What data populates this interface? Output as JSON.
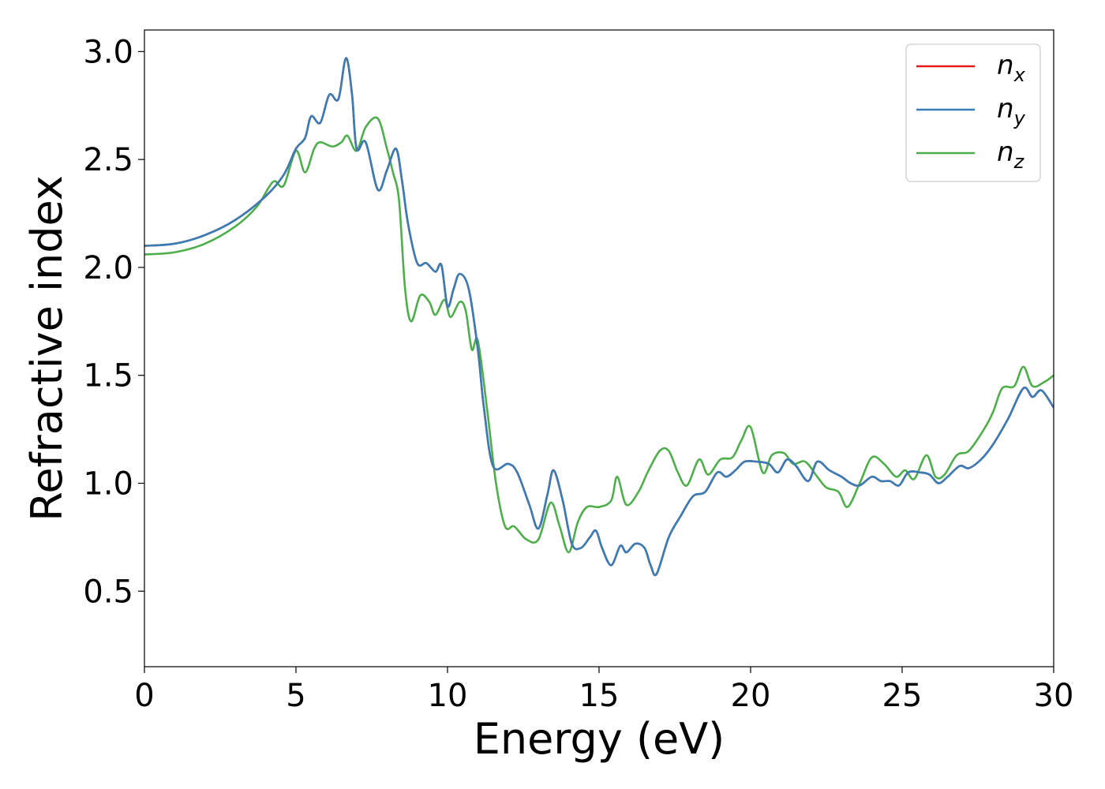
{
  "chart_data": {
    "type": "line",
    "xlabel": "Energy (eV)",
    "ylabel": "Refractive index",
    "xlim": [
      0,
      30
    ],
    "ylim": [
      0.15,
      3.1
    ],
    "x_ticks": [
      0,
      5,
      10,
      15,
      20,
      25,
      30
    ],
    "y_ticks": [
      0.5,
      1.0,
      1.5,
      2.0,
      2.5,
      3.0
    ],
    "x_tick_labels": [
      "0",
      "5",
      "10",
      "15",
      "20",
      "25",
      "30"
    ],
    "y_tick_labels": [
      "0.5",
      "1.0",
      "1.5",
      "2.0",
      "2.5",
      "3.0"
    ],
    "grid": false,
    "legend_position": "top-right",
    "series": [
      {
        "name": "n",
        "subscript": "x",
        "color": "#e41a1c",
        "points": [
          [
            0,
            2.1
          ],
          [
            1,
            2.11
          ],
          [
            2,
            2.15
          ],
          [
            3,
            2.22
          ],
          [
            4,
            2.33
          ],
          [
            4.6,
            2.43
          ],
          [
            5.0,
            2.55
          ],
          [
            5.3,
            2.6
          ],
          [
            5.5,
            2.7
          ],
          [
            5.8,
            2.67
          ],
          [
            6.1,
            2.8
          ],
          [
            6.4,
            2.78
          ],
          [
            6.65,
            2.97
          ],
          [
            6.85,
            2.8
          ],
          [
            7.0,
            2.55
          ],
          [
            7.3,
            2.58
          ],
          [
            7.7,
            2.36
          ],
          [
            8.0,
            2.45
          ],
          [
            8.3,
            2.55
          ],
          [
            8.5,
            2.4
          ],
          [
            8.7,
            2.2
          ],
          [
            9.0,
            2.02
          ],
          [
            9.3,
            2.02
          ],
          [
            9.6,
            1.98
          ],
          [
            9.8,
            2.01
          ],
          [
            10.0,
            1.82
          ],
          [
            10.2,
            1.9
          ],
          [
            10.4,
            1.97
          ],
          [
            10.7,
            1.9
          ],
          [
            11.0,
            1.62
          ],
          [
            11.2,
            1.35
          ],
          [
            11.5,
            1.08
          ],
          [
            12.0,
            1.09
          ],
          [
            12.3,
            1.05
          ],
          [
            12.7,
            0.9
          ],
          [
            13.0,
            0.79
          ],
          [
            13.3,
            0.95
          ],
          [
            13.5,
            1.06
          ],
          [
            13.8,
            0.92
          ],
          [
            14.1,
            0.72
          ],
          [
            14.4,
            0.7
          ],
          [
            14.7,
            0.75
          ],
          [
            14.9,
            0.78
          ],
          [
            15.1,
            0.7
          ],
          [
            15.4,
            0.62
          ],
          [
            15.7,
            0.71
          ],
          [
            15.9,
            0.68
          ],
          [
            16.2,
            0.72
          ],
          [
            16.5,
            0.7
          ],
          [
            16.7,
            0.62
          ],
          [
            16.9,
            0.58
          ],
          [
            17.3,
            0.75
          ],
          [
            17.7,
            0.85
          ],
          [
            18.1,
            0.94
          ],
          [
            18.5,
            0.96
          ],
          [
            18.9,
            1.05
          ],
          [
            19.2,
            1.03
          ],
          [
            19.5,
            1.06
          ],
          [
            19.8,
            1.1
          ],
          [
            20.2,
            1.1
          ],
          [
            20.6,
            1.09
          ],
          [
            20.9,
            1.05
          ],
          [
            21.2,
            1.11
          ],
          [
            21.5,
            1.08
          ],
          [
            21.9,
            1.01
          ],
          [
            22.2,
            1.1
          ],
          [
            22.6,
            1.06
          ],
          [
            23.0,
            1.03
          ],
          [
            23.3,
            1.0
          ],
          [
            23.6,
            0.99
          ],
          [
            24.0,
            1.03
          ],
          [
            24.3,
            1.01
          ],
          [
            24.6,
            1.01
          ],
          [
            24.9,
            0.99
          ],
          [
            25.2,
            1.05
          ],
          [
            25.6,
            1.05
          ],
          [
            25.9,
            1.04
          ],
          [
            26.2,
            1.0
          ],
          [
            26.5,
            1.03
          ],
          [
            26.9,
            1.08
          ],
          [
            27.2,
            1.07
          ],
          [
            27.6,
            1.11
          ],
          [
            28.0,
            1.18
          ],
          [
            28.5,
            1.3
          ],
          [
            29.0,
            1.44
          ],
          [
            29.3,
            1.4
          ],
          [
            29.6,
            1.43
          ],
          [
            30.0,
            1.35
          ]
        ]
      },
      {
        "name": "n",
        "subscript": "y",
        "color": "#377eb8",
        "points": [
          [
            0,
            2.1
          ],
          [
            1,
            2.11
          ],
          [
            2,
            2.15
          ],
          [
            3,
            2.22
          ],
          [
            4,
            2.33
          ],
          [
            4.6,
            2.43
          ],
          [
            5.0,
            2.55
          ],
          [
            5.3,
            2.6
          ],
          [
            5.5,
            2.7
          ],
          [
            5.8,
            2.67
          ],
          [
            6.1,
            2.8
          ],
          [
            6.4,
            2.78
          ],
          [
            6.65,
            2.97
          ],
          [
            6.85,
            2.8
          ],
          [
            7.0,
            2.55
          ],
          [
            7.3,
            2.58
          ],
          [
            7.7,
            2.36
          ],
          [
            8.0,
            2.45
          ],
          [
            8.3,
            2.55
          ],
          [
            8.5,
            2.4
          ],
          [
            8.7,
            2.2
          ],
          [
            9.0,
            2.02
          ],
          [
            9.3,
            2.02
          ],
          [
            9.6,
            1.98
          ],
          [
            9.8,
            2.01
          ],
          [
            10.0,
            1.82
          ],
          [
            10.2,
            1.9
          ],
          [
            10.4,
            1.97
          ],
          [
            10.7,
            1.9
          ],
          [
            11.0,
            1.62
          ],
          [
            11.2,
            1.35
          ],
          [
            11.5,
            1.08
          ],
          [
            12.0,
            1.09
          ],
          [
            12.3,
            1.05
          ],
          [
            12.7,
            0.9
          ],
          [
            13.0,
            0.79
          ],
          [
            13.3,
            0.95
          ],
          [
            13.5,
            1.06
          ],
          [
            13.8,
            0.92
          ],
          [
            14.1,
            0.72
          ],
          [
            14.4,
            0.7
          ],
          [
            14.7,
            0.75
          ],
          [
            14.9,
            0.78
          ],
          [
            15.1,
            0.7
          ],
          [
            15.4,
            0.62
          ],
          [
            15.7,
            0.71
          ],
          [
            15.9,
            0.68
          ],
          [
            16.2,
            0.72
          ],
          [
            16.5,
            0.7
          ],
          [
            16.7,
            0.62
          ],
          [
            16.9,
            0.58
          ],
          [
            17.3,
            0.75
          ],
          [
            17.7,
            0.85
          ],
          [
            18.1,
            0.94
          ],
          [
            18.5,
            0.96
          ],
          [
            18.9,
            1.05
          ],
          [
            19.2,
            1.03
          ],
          [
            19.5,
            1.06
          ],
          [
            19.8,
            1.1
          ],
          [
            20.2,
            1.1
          ],
          [
            20.6,
            1.09
          ],
          [
            20.9,
            1.05
          ],
          [
            21.2,
            1.11
          ],
          [
            21.5,
            1.08
          ],
          [
            21.9,
            1.01
          ],
          [
            22.2,
            1.1
          ],
          [
            22.6,
            1.06
          ],
          [
            23.0,
            1.03
          ],
          [
            23.3,
            1.0
          ],
          [
            23.6,
            0.99
          ],
          [
            24.0,
            1.03
          ],
          [
            24.3,
            1.01
          ],
          [
            24.6,
            1.01
          ],
          [
            24.9,
            0.99
          ],
          [
            25.2,
            1.05
          ],
          [
            25.6,
            1.05
          ],
          [
            25.9,
            1.04
          ],
          [
            26.2,
            1.0
          ],
          [
            26.5,
            1.03
          ],
          [
            26.9,
            1.08
          ],
          [
            27.2,
            1.07
          ],
          [
            27.6,
            1.11
          ],
          [
            28.0,
            1.18
          ],
          [
            28.5,
            1.3
          ],
          [
            29.0,
            1.44
          ],
          [
            29.3,
            1.4
          ],
          [
            29.6,
            1.43
          ],
          [
            30.0,
            1.35
          ]
        ]
      },
      {
        "name": "n",
        "subscript": "z",
        "color": "#4daf4a",
        "points": [
          [
            0,
            2.06
          ],
          [
            1,
            2.07
          ],
          [
            2,
            2.11
          ],
          [
            3,
            2.19
          ],
          [
            3.7,
            2.28
          ],
          [
            4.1,
            2.37
          ],
          [
            4.3,
            2.4
          ],
          [
            4.6,
            2.38
          ],
          [
            5.0,
            2.54
          ],
          [
            5.3,
            2.44
          ],
          [
            5.6,
            2.55
          ],
          [
            5.8,
            2.58
          ],
          [
            6.2,
            2.56
          ],
          [
            6.5,
            2.58
          ],
          [
            6.7,
            2.61
          ],
          [
            7.0,
            2.54
          ],
          [
            7.3,
            2.65
          ],
          [
            7.7,
            2.69
          ],
          [
            8.0,
            2.55
          ],
          [
            8.2,
            2.44
          ],
          [
            8.4,
            2.31
          ],
          [
            8.6,
            1.9
          ],
          [
            8.8,
            1.75
          ],
          [
            9.1,
            1.87
          ],
          [
            9.4,
            1.84
          ],
          [
            9.6,
            1.78
          ],
          [
            9.9,
            1.85
          ],
          [
            10.1,
            1.77
          ],
          [
            10.4,
            1.84
          ],
          [
            10.6,
            1.8
          ],
          [
            10.8,
            1.62
          ],
          [
            11.0,
            1.66
          ],
          [
            11.3,
            1.35
          ],
          [
            11.6,
            1.0
          ],
          [
            11.9,
            0.8
          ],
          [
            12.2,
            0.8
          ],
          [
            12.6,
            0.74
          ],
          [
            13.0,
            0.74
          ],
          [
            13.4,
            0.91
          ],
          [
            13.7,
            0.8
          ],
          [
            14.0,
            0.68
          ],
          [
            14.3,
            0.82
          ],
          [
            14.6,
            0.89
          ],
          [
            15.0,
            0.89
          ],
          [
            15.4,
            0.92
          ],
          [
            15.6,
            1.03
          ],
          [
            15.9,
            0.9
          ],
          [
            16.3,
            0.96
          ],
          [
            16.6,
            1.05
          ],
          [
            17.0,
            1.15
          ],
          [
            17.3,
            1.15
          ],
          [
            17.6,
            1.05
          ],
          [
            17.9,
            0.99
          ],
          [
            18.3,
            1.11
          ],
          [
            18.6,
            1.04
          ],
          [
            19.0,
            1.11
          ],
          [
            19.4,
            1.12
          ],
          [
            19.7,
            1.2
          ],
          [
            20.0,
            1.26
          ],
          [
            20.4,
            1.05
          ],
          [
            20.7,
            1.13
          ],
          [
            21.1,
            1.14
          ],
          [
            21.4,
            1.09
          ],
          [
            21.8,
            1.1
          ],
          [
            22.2,
            1.03
          ],
          [
            22.5,
            0.98
          ],
          [
            22.9,
            0.96
          ],
          [
            23.2,
            0.89
          ],
          [
            23.6,
            1.0
          ],
          [
            24.0,
            1.12
          ],
          [
            24.4,
            1.09
          ],
          [
            24.8,
            1.03
          ],
          [
            25.1,
            1.06
          ],
          [
            25.4,
            1.02
          ],
          [
            25.8,
            1.13
          ],
          [
            26.1,
            1.03
          ],
          [
            26.4,
            1.04
          ],
          [
            26.8,
            1.13
          ],
          [
            27.2,
            1.15
          ],
          [
            27.7,
            1.25
          ],
          [
            28.0,
            1.33
          ],
          [
            28.3,
            1.44
          ],
          [
            28.7,
            1.45
          ],
          [
            29.0,
            1.54
          ],
          [
            29.3,
            1.45
          ],
          [
            29.7,
            1.47
          ],
          [
            30.0,
            1.5
          ]
        ]
      }
    ]
  }
}
